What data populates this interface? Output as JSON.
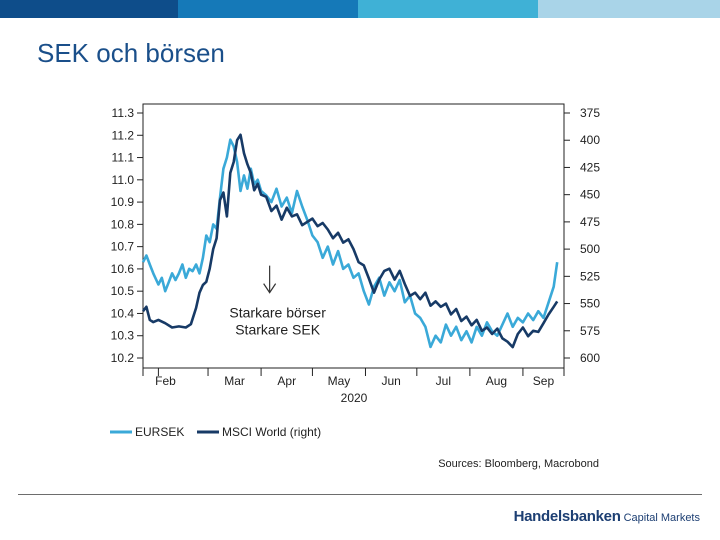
{
  "slide": {
    "title": "SEK och börsen",
    "brand_name": "Handelsbanken",
    "brand_suffix": "Capital Markets",
    "topbar_colors": [
      "#0e4d8a",
      "#1579b8",
      "#3fb1d6",
      "#a9d4e8"
    ]
  },
  "chart_data": {
    "type": "line",
    "title": "",
    "xlabel": "2020",
    "x_ticks": [
      "Feb",
      "Mar",
      "Apr",
      "May",
      "Jun",
      "Jul",
      "Aug",
      "Sep"
    ],
    "y_left": {
      "label": "",
      "range": [
        10.2,
        11.3
      ],
      "ticks": [
        "11.3",
        "11.2",
        "11.1",
        "11.0",
        "10.9",
        "10.8",
        "10.7",
        "10.6",
        "10.5",
        "10.4",
        "10.3",
        "10.2"
      ]
    },
    "y_right": {
      "label": "",
      "range": [
        375,
        600
      ],
      "inverted": true,
      "ticks": [
        "375",
        "400",
        "425",
        "450",
        "475",
        "500",
        "525",
        "550",
        "575",
        "600"
      ]
    },
    "x_domain": [
      "2020-01-23",
      "2020-09-25"
    ],
    "series": [
      {
        "name": "EURSEK",
        "axis": "left",
        "color": "#3aa9d8",
        "points": [
          [
            "2020-01-23",
            10.63
          ],
          [
            "2020-01-25",
            10.66
          ],
          [
            "2020-01-27",
            10.62
          ],
          [
            "2020-01-29",
            10.58
          ],
          [
            "2020-02-01",
            10.53
          ],
          [
            "2020-02-03",
            10.56
          ],
          [
            "2020-02-05",
            10.5
          ],
          [
            "2020-02-07",
            10.54
          ],
          [
            "2020-02-09",
            10.58
          ],
          [
            "2020-02-11",
            10.55
          ],
          [
            "2020-02-13",
            10.58
          ],
          [
            "2020-02-15",
            10.62
          ],
          [
            "2020-02-17",
            10.56
          ],
          [
            "2020-02-19",
            10.6
          ],
          [
            "2020-02-21",
            10.59
          ],
          [
            "2020-02-23",
            10.62
          ],
          [
            "2020-02-25",
            10.58
          ],
          [
            "2020-02-27",
            10.65
          ],
          [
            "2020-02-29",
            10.75
          ],
          [
            "2020-03-02",
            10.72
          ],
          [
            "2020-03-04",
            10.8
          ],
          [
            "2020-03-06",
            10.78
          ],
          [
            "2020-03-08",
            10.92
          ],
          [
            "2020-03-10",
            11.05
          ],
          [
            "2020-03-12",
            11.1
          ],
          [
            "2020-03-14",
            11.18
          ],
          [
            "2020-03-16",
            11.15
          ],
          [
            "2020-03-18",
            11.08
          ],
          [
            "2020-03-20",
            10.95
          ],
          [
            "2020-03-22",
            11.02
          ],
          [
            "2020-03-24",
            10.96
          ],
          [
            "2020-03-26",
            11.05
          ],
          [
            "2020-03-28",
            10.98
          ],
          [
            "2020-03-30",
            11.0
          ],
          [
            "2020-04-01",
            10.95
          ],
          [
            "2020-04-04",
            10.93
          ],
          [
            "2020-04-07",
            10.9
          ],
          [
            "2020-04-10",
            10.96
          ],
          [
            "2020-04-13",
            10.88
          ],
          [
            "2020-04-16",
            10.92
          ],
          [
            "2020-04-19",
            10.85
          ],
          [
            "2020-04-22",
            10.95
          ],
          [
            "2020-04-25",
            10.88
          ],
          [
            "2020-04-28",
            10.82
          ],
          [
            "2020-05-01",
            10.75
          ],
          [
            "2020-05-04",
            10.72
          ],
          [
            "2020-05-07",
            10.65
          ],
          [
            "2020-05-10",
            10.7
          ],
          [
            "2020-05-13",
            10.62
          ],
          [
            "2020-05-16",
            10.68
          ],
          [
            "2020-05-19",
            10.6
          ],
          [
            "2020-05-22",
            10.62
          ],
          [
            "2020-05-25",
            10.56
          ],
          [
            "2020-05-28",
            10.58
          ],
          [
            "2020-05-31",
            10.5
          ],
          [
            "2020-06-03",
            10.44
          ],
          [
            "2020-06-06",
            10.52
          ],
          [
            "2020-06-09",
            10.56
          ],
          [
            "2020-06-12",
            10.48
          ],
          [
            "2020-06-15",
            10.54
          ],
          [
            "2020-06-18",
            10.5
          ],
          [
            "2020-06-21",
            10.55
          ],
          [
            "2020-06-24",
            10.45
          ],
          [
            "2020-06-27",
            10.48
          ],
          [
            "2020-06-30",
            10.4
          ],
          [
            "2020-07-03",
            10.38
          ],
          [
            "2020-07-06",
            10.34
          ],
          [
            "2020-07-09",
            10.25
          ],
          [
            "2020-07-12",
            10.3
          ],
          [
            "2020-07-15",
            10.27
          ],
          [
            "2020-07-18",
            10.35
          ],
          [
            "2020-07-21",
            10.3
          ],
          [
            "2020-07-24",
            10.34
          ],
          [
            "2020-07-27",
            10.28
          ],
          [
            "2020-07-30",
            10.32
          ],
          [
            "2020-08-02",
            10.27
          ],
          [
            "2020-08-05",
            10.34
          ],
          [
            "2020-08-08",
            10.3
          ],
          [
            "2020-08-11",
            10.36
          ],
          [
            "2020-08-14",
            10.32
          ],
          [
            "2020-08-17",
            10.3
          ],
          [
            "2020-08-20",
            10.35
          ],
          [
            "2020-08-23",
            10.4
          ],
          [
            "2020-08-26",
            10.34
          ],
          [
            "2020-08-29",
            10.38
          ],
          [
            "2020-09-01",
            10.36
          ],
          [
            "2020-09-04",
            10.4
          ],
          [
            "2020-09-07",
            10.37
          ],
          [
            "2020-09-10",
            10.41
          ],
          [
            "2020-09-13",
            10.38
          ],
          [
            "2020-09-16",
            10.45
          ],
          [
            "2020-09-19",
            10.52
          ],
          [
            "2020-09-21",
            10.63
          ]
        ]
      },
      {
        "name": "MSCI World (right)",
        "axis": "right",
        "color": "#173a66",
        "points": [
          [
            "2020-01-23",
            557
          ],
          [
            "2020-01-25",
            553
          ],
          [
            "2020-01-27",
            565
          ],
          [
            "2020-01-29",
            567
          ],
          [
            "2020-02-01",
            565
          ],
          [
            "2020-02-05",
            568
          ],
          [
            "2020-02-09",
            572
          ],
          [
            "2020-02-13",
            571
          ],
          [
            "2020-02-17",
            572
          ],
          [
            "2020-02-20",
            569
          ],
          [
            "2020-02-23",
            554
          ],
          [
            "2020-02-25",
            540
          ],
          [
            "2020-02-27",
            533
          ],
          [
            "2020-02-29",
            530
          ],
          [
            "2020-03-02",
            518
          ],
          [
            "2020-03-04",
            500
          ],
          [
            "2020-03-06",
            490
          ],
          [
            "2020-03-08",
            455
          ],
          [
            "2020-03-10",
            448
          ],
          [
            "2020-03-12",
            470
          ],
          [
            "2020-03-14",
            430
          ],
          [
            "2020-03-16",
            420
          ],
          [
            "2020-03-18",
            400
          ],
          [
            "2020-03-20",
            395
          ],
          [
            "2020-03-22",
            412
          ],
          [
            "2020-03-24",
            422
          ],
          [
            "2020-03-26",
            430
          ],
          [
            "2020-03-28",
            446
          ],
          [
            "2020-03-30",
            440
          ],
          [
            "2020-04-01",
            450
          ],
          [
            "2020-04-04",
            452
          ],
          [
            "2020-04-07",
            465
          ],
          [
            "2020-04-10",
            460
          ],
          [
            "2020-04-13",
            473
          ],
          [
            "2020-04-16",
            462
          ],
          [
            "2020-04-19",
            470
          ],
          [
            "2020-04-22",
            468
          ],
          [
            "2020-04-25",
            478
          ],
          [
            "2020-04-28",
            475
          ],
          [
            "2020-05-01",
            472
          ],
          [
            "2020-05-04",
            479
          ],
          [
            "2020-05-07",
            476
          ],
          [
            "2020-05-10",
            482
          ],
          [
            "2020-05-13",
            490
          ],
          [
            "2020-05-16",
            485
          ],
          [
            "2020-05-19",
            494
          ],
          [
            "2020-05-22",
            491
          ],
          [
            "2020-05-25",
            500
          ],
          [
            "2020-05-28",
            512
          ],
          [
            "2020-05-31",
            515
          ],
          [
            "2020-06-03",
            527
          ],
          [
            "2020-06-06",
            540
          ],
          [
            "2020-06-09",
            528
          ],
          [
            "2020-06-12",
            520
          ],
          [
            "2020-06-15",
            518
          ],
          [
            "2020-06-18",
            528
          ],
          [
            "2020-06-21",
            520
          ],
          [
            "2020-06-24",
            532
          ],
          [
            "2020-06-27",
            543
          ],
          [
            "2020-06-30",
            540
          ],
          [
            "2020-07-03",
            546
          ],
          [
            "2020-07-06",
            540
          ],
          [
            "2020-07-09",
            552
          ],
          [
            "2020-07-12",
            548
          ],
          [
            "2020-07-15",
            553
          ],
          [
            "2020-07-18",
            550
          ],
          [
            "2020-07-21",
            560
          ],
          [
            "2020-07-24",
            555
          ],
          [
            "2020-07-27",
            566
          ],
          [
            "2020-07-30",
            562
          ],
          [
            "2020-08-02",
            570
          ],
          [
            "2020-08-05",
            565
          ],
          [
            "2020-08-08",
            575
          ],
          [
            "2020-08-11",
            572
          ],
          [
            "2020-08-14",
            578
          ],
          [
            "2020-08-17",
            573
          ],
          [
            "2020-08-20",
            582
          ],
          [
            "2020-08-23",
            585
          ],
          [
            "2020-08-26",
            590
          ],
          [
            "2020-08-29",
            578
          ],
          [
            "2020-09-01",
            572
          ],
          [
            "2020-09-04",
            580
          ],
          [
            "2020-09-07",
            575
          ],
          [
            "2020-09-10",
            576
          ],
          [
            "2020-09-13",
            568
          ],
          [
            "2020-09-16",
            560
          ],
          [
            "2020-09-19",
            553
          ],
          [
            "2020-09-21",
            548
          ]
        ]
      }
    ],
    "annotation": {
      "arrow_symbol": "↓",
      "line1": "Starkare börser",
      "line2": "Starkare SEK",
      "anchor": {
        "date": "2020-04-06",
        "value": 10.48
      }
    },
    "legend": {
      "placement": "bottom-left",
      "entries": [
        {
          "label": "EURSEK",
          "color": "#3aa9d8"
        },
        {
          "label": "MSCI World (right)",
          "color": "#173a66"
        }
      ]
    },
    "source": "Sources: Bloomberg, Macrobond"
  }
}
